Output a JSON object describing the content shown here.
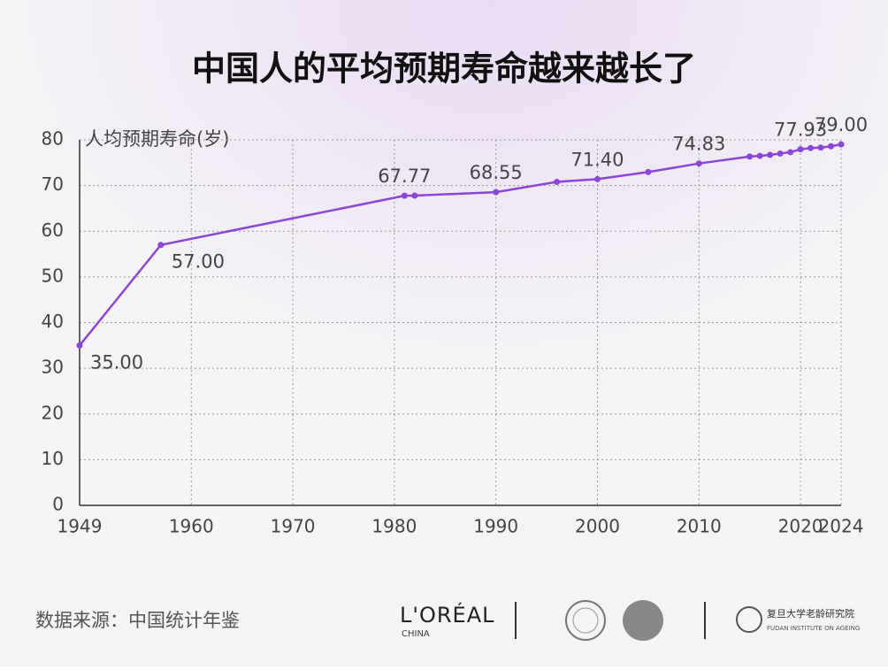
{
  "chart_data": {
    "type": "line",
    "title": "中国人的平均预期寿命越来越长了",
    "y_label": "人均预期寿命(岁)",
    "x": [
      1949,
      1957,
      1981,
      1982,
      1990,
      1996,
      2000,
      2005,
      2010,
      2015,
      2016,
      2017,
      2018,
      2019,
      2020,
      2021,
      2022,
      2023,
      2024
    ],
    "series": [
      {
        "name": "人均预期寿命",
        "color": "#8b45d9",
        "values": [
          35.0,
          57.0,
          67.77,
          67.8,
          68.55,
          70.8,
          71.4,
          72.95,
          74.83,
          76.34,
          76.5,
          76.7,
          77.0,
          77.3,
          77.93,
          78.2,
          78.3,
          78.6,
          79.0
        ],
        "value_labels": [
          "35.00",
          "57.00",
          "67.77",
          null,
          "68.55",
          null,
          "71.40",
          null,
          "74.83",
          null,
          null,
          null,
          null,
          null,
          "77.93",
          null,
          null,
          null,
          "79.00"
        ]
      }
    ],
    "xlim": [
      1949,
      2024
    ],
    "xticks": [
      1949,
      1960,
      1970,
      1980,
      1990,
      2000,
      2010,
      2020,
      2024
    ],
    "ylim": [
      0,
      80
    ],
    "yticks": [
      0,
      10,
      20,
      30,
      40,
      50,
      60,
      70,
      80
    ],
    "grid": true,
    "source": "数据来源：中国统计年鉴"
  },
  "logos": {
    "loreal": "L'ORÉAL",
    "loreal_sub": "CHINA",
    "fudan": "复旦大学老龄研究院",
    "fudan_sub": "FUDAN INSTITUTE ON AGEING"
  }
}
